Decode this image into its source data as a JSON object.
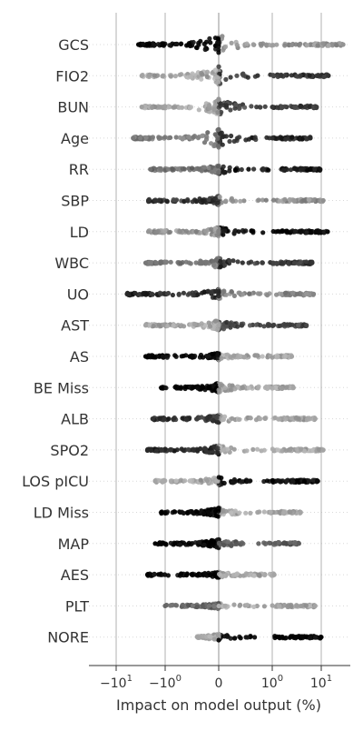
{
  "chart_data": {
    "type": "scatter",
    "subtype": "beeswarm",
    "title": "",
    "xlabel": "Impact on model output (%)",
    "ylabel": "",
    "x_scale": "symlog",
    "xlim": [
      -25,
      25
    ],
    "x_ticks": [
      {
        "value": -10,
        "label": "−10",
        "exp": "1"
      },
      {
        "value": -1,
        "label": "−10",
        "exp": "0"
      },
      {
        "value": 0,
        "label": "0",
        "exp": ""
      },
      {
        "value": 1,
        "label": "10",
        "exp": "0"
      },
      {
        "value": 10,
        "label": "10",
        "exp": "1"
      }
    ],
    "vertical_gridlines": true,
    "horizontal_guides": "dotted",
    "color_scheme": "grayscale",
    "colors": {
      "low_feature_value": "#000000",
      "high_feature_value": "#cccccc",
      "axis": "#333333",
      "grid": "#b0b0b0",
      "guide": "#d8d8d8"
    },
    "categories": [
      "GCS",
      "FIO2",
      "BUN",
      "Age",
      "RR",
      "SBP",
      "LD",
      "WBC",
      "UO",
      "AST",
      "AS",
      "BE Miss",
      "ALB",
      "SPO2",
      "LOS pICU",
      "LD Miss",
      "MAP",
      "AES",
      "PLT",
      "NORE"
    ],
    "series": [
      {
        "feature": "GCS",
        "min": -3.5,
        "max": 28,
        "neg_shade": 0.0,
        "pos_shade": 0.72,
        "core": 1.0
      },
      {
        "feature": "FIO2",
        "min": -3.0,
        "max": 14,
        "neg_shade": 0.8,
        "pos_shade": 0.25,
        "core": 0.95
      },
      {
        "feature": "BUN",
        "min": -3.0,
        "max": 8,
        "neg_shade": 0.78,
        "pos_shade": 0.3,
        "core": 0.8
      },
      {
        "feature": "Age",
        "min": -4.5,
        "max": 6,
        "neg_shade": 0.6,
        "pos_shade": 0.2,
        "core": 1.0
      },
      {
        "feature": "RR",
        "min": -2.0,
        "max": 9.5,
        "neg_shade": 0.55,
        "pos_shade": 0.1,
        "core": 0.45
      },
      {
        "feature": "SBP",
        "min": -2.2,
        "max": 11,
        "neg_shade": 0.25,
        "pos_shade": 0.7,
        "core": 0.45
      },
      {
        "feature": "LD",
        "min": -2.2,
        "max": 13.5,
        "neg_shade": 0.72,
        "pos_shade": 0.05,
        "core": 0.45
      },
      {
        "feature": "WBC",
        "min": -2.5,
        "max": 6.5,
        "neg_shade": 0.58,
        "pos_shade": 0.25,
        "core": 0.5
      },
      {
        "feature": "UO",
        "min": -6.0,
        "max": 7.0,
        "neg_shade": 0.2,
        "pos_shade": 0.65,
        "core": 0.5
      },
      {
        "feature": "AST",
        "min": -2.5,
        "max": 5.0,
        "neg_shade": 0.8,
        "pos_shade": 0.35,
        "core": 0.5
      },
      {
        "feature": "AS",
        "min": -2.5,
        "max": 2.5,
        "neg_shade": 0.0,
        "pos_shade": 0.8,
        "core": 0.35
      },
      {
        "feature": "BE Miss",
        "min": -1.2,
        "max": 2.7,
        "neg_shade": 0.0,
        "pos_shade": 0.8,
        "core": 0.45
      },
      {
        "feature": "ALB",
        "min": -1.8,
        "max": 7.5,
        "neg_shade": 0.25,
        "pos_shade": 0.8,
        "core": 0.4
      },
      {
        "feature": "SPO2",
        "min": -2.3,
        "max": 11,
        "neg_shade": 0.2,
        "pos_shade": 0.8,
        "core": 0.45
      },
      {
        "feature": "LOS pICU",
        "min": -1.6,
        "max": 8.5,
        "neg_shade": 0.8,
        "pos_shade": 0.05,
        "core": 0.4
      },
      {
        "feature": "LD Miss",
        "min": -1.2,
        "max": 3.8,
        "neg_shade": 0.0,
        "pos_shade": 0.8,
        "core": 0.45
      },
      {
        "feature": "MAP",
        "min": -1.6,
        "max": 3.5,
        "neg_shade": 0.0,
        "pos_shade": 0.45,
        "core": 0.45
      },
      {
        "feature": "AES",
        "min": -2.3,
        "max": 1.1,
        "neg_shade": 0.0,
        "pos_shade": 0.8,
        "core": 0.3
      },
      {
        "feature": "PLT",
        "min": -1.0,
        "max": 7.5,
        "neg_shade": 0.5,
        "pos_shade": 0.8,
        "core": 0.3
      },
      {
        "feature": "NORE",
        "min": -0.4,
        "max": 10,
        "neg_shade": 0.8,
        "pos_shade": 0.0,
        "core": 0.3
      }
    ]
  }
}
